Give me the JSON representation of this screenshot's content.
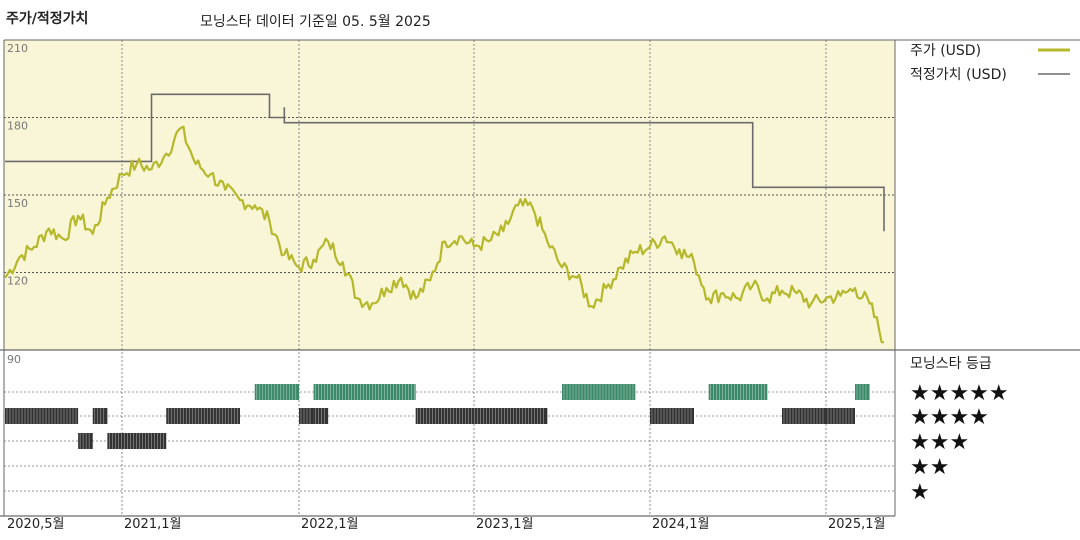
{
  "header": {
    "title": "주가/적정가치",
    "subtitle": "모닝스타 데이터 기준일 05. 5월 2025"
  },
  "legend": {
    "price_label": "주가 (USD)",
    "fair_value_label": "적정가치 (USD)",
    "rating_title": "모닝스타 등급",
    "stars": [
      "★★★★★",
      "★★★★",
      "★★★",
      "★★",
      "★"
    ]
  },
  "colors": {
    "price": "#b5b82a",
    "fair_value": "#6b6b6b",
    "plot_bg": "#f9f5d7",
    "rating_green": "#3d8a6a",
    "rating_black": "#333333"
  },
  "chart_data": {
    "type": "line",
    "y_ticks": [
      "210",
      "180",
      "150",
      "120",
      "90"
    ],
    "ylim": [
      90,
      210
    ],
    "x_tick_labels": [
      "2020,5월",
      "2021,1월",
      "2022,1월",
      "2023,1월",
      "2024,1월",
      "2025,1월"
    ],
    "x_tick_dates": [
      "2020-05",
      "2021-01",
      "2022-01",
      "2023-01",
      "2024-01",
      "2025-01"
    ],
    "series": [
      {
        "name": "주가 (USD)",
        "points": [
          [
            "2020-05",
            118
          ],
          [
            "2020-06",
            126
          ],
          [
            "2020-07",
            130
          ],
          [
            "2020-08",
            137
          ],
          [
            "2020-09",
            133
          ],
          [
            "2020-10",
            142
          ],
          [
            "2020-11",
            135
          ],
          [
            "2020-12",
            149
          ],
          [
            "2021-01",
            158
          ],
          [
            "2021-02",
            162
          ],
          [
            "2021-03",
            160
          ],
          [
            "2021-04",
            166
          ],
          [
            "2021-05",
            176
          ],
          [
            "2021-06",
            162
          ],
          [
            "2021-07",
            158
          ],
          [
            "2021-08",
            152
          ],
          [
            "2021-09",
            148
          ],
          [
            "2021-10",
            146
          ],
          [
            "2021-11",
            140
          ],
          [
            "2021-12",
            127
          ],
          [
            "2022-01",
            122
          ],
          [
            "2022-02",
            125
          ],
          [
            "2022-03",
            132
          ],
          [
            "2022-04",
            124
          ],
          [
            "2022-05",
            110
          ],
          [
            "2022-06",
            108
          ],
          [
            "2022-07",
            114
          ],
          [
            "2022-08",
            118
          ],
          [
            "2022-09",
            110
          ],
          [
            "2022-10",
            117
          ],
          [
            "2022-11",
            132
          ],
          [
            "2022-12",
            134
          ],
          [
            "2023-01",
            130
          ],
          [
            "2023-02",
            132
          ],
          [
            "2023-03",
            136
          ],
          [
            "2023-04",
            146
          ],
          [
            "2023-05",
            145
          ],
          [
            "2023-06",
            132
          ],
          [
            "2023-07",
            122
          ],
          [
            "2023-08",
            118
          ],
          [
            "2023-09",
            107
          ],
          [
            "2023-10",
            114
          ],
          [
            "2023-11",
            122
          ],
          [
            "2023-12",
            128
          ],
          [
            "2024-01",
            130
          ],
          [
            "2024-02",
            134
          ],
          [
            "2024-03",
            129
          ],
          [
            "2024-04",
            124
          ],
          [
            "2024-05",
            110
          ],
          [
            "2024-06",
            112
          ],
          [
            "2024-07",
            110
          ],
          [
            "2024-08",
            115
          ],
          [
            "2024-09",
            110
          ],
          [
            "2024-10",
            113
          ],
          [
            "2024-11",
            112
          ],
          [
            "2024-12",
            108
          ],
          [
            "2025-01",
            110
          ],
          [
            "2025-02",
            111
          ],
          [
            "2025-03",
            114
          ],
          [
            "2025-04",
            108
          ],
          [
            "2025-05",
            93
          ]
        ]
      },
      {
        "name": "적정가치 (USD)",
        "points": [
          [
            "2020-05",
            163
          ],
          [
            "2021-03",
            163
          ],
          [
            "2021-03",
            189
          ],
          [
            "2021-11",
            189
          ],
          [
            "2021-11",
            180
          ],
          [
            "2021-12",
            180
          ],
          [
            "2021-12",
            184
          ],
          [
            "2021-12",
            178
          ],
          [
            "2024-08",
            178
          ],
          [
            "2024-08",
            153
          ],
          [
            "2025-05",
            153
          ],
          [
            "2025-05",
            136
          ]
        ]
      }
    ],
    "rating_history": [
      {
        "stars": 5,
        "periods": [
          [
            "2021-10",
            "2022-01"
          ],
          [
            "2022-02",
            "2022-09"
          ],
          [
            "2023-07",
            "2023-12"
          ],
          [
            "2024-05",
            "2024-09"
          ],
          [
            "2025-03",
            "2025-04"
          ]
        ]
      },
      {
        "stars": 4,
        "periods": [
          [
            "2020-05",
            "2020-10"
          ],
          [
            "2020-11",
            "2020-12"
          ],
          [
            "2021-04",
            "2021-09"
          ],
          [
            "2022-01",
            "2022-02"
          ],
          [
            "2022-02",
            "2022-03"
          ],
          [
            "2022-09",
            "2023-06"
          ],
          [
            "2024-01",
            "2024-04"
          ],
          [
            "2024-10",
            "2025-01"
          ],
          [
            "2025-01",
            "2025-03"
          ]
        ]
      },
      {
        "stars": 3,
        "periods": [
          [
            "2020-10",
            "2020-11"
          ],
          [
            "2020-12",
            "2021-04"
          ]
        ]
      }
    ]
  }
}
